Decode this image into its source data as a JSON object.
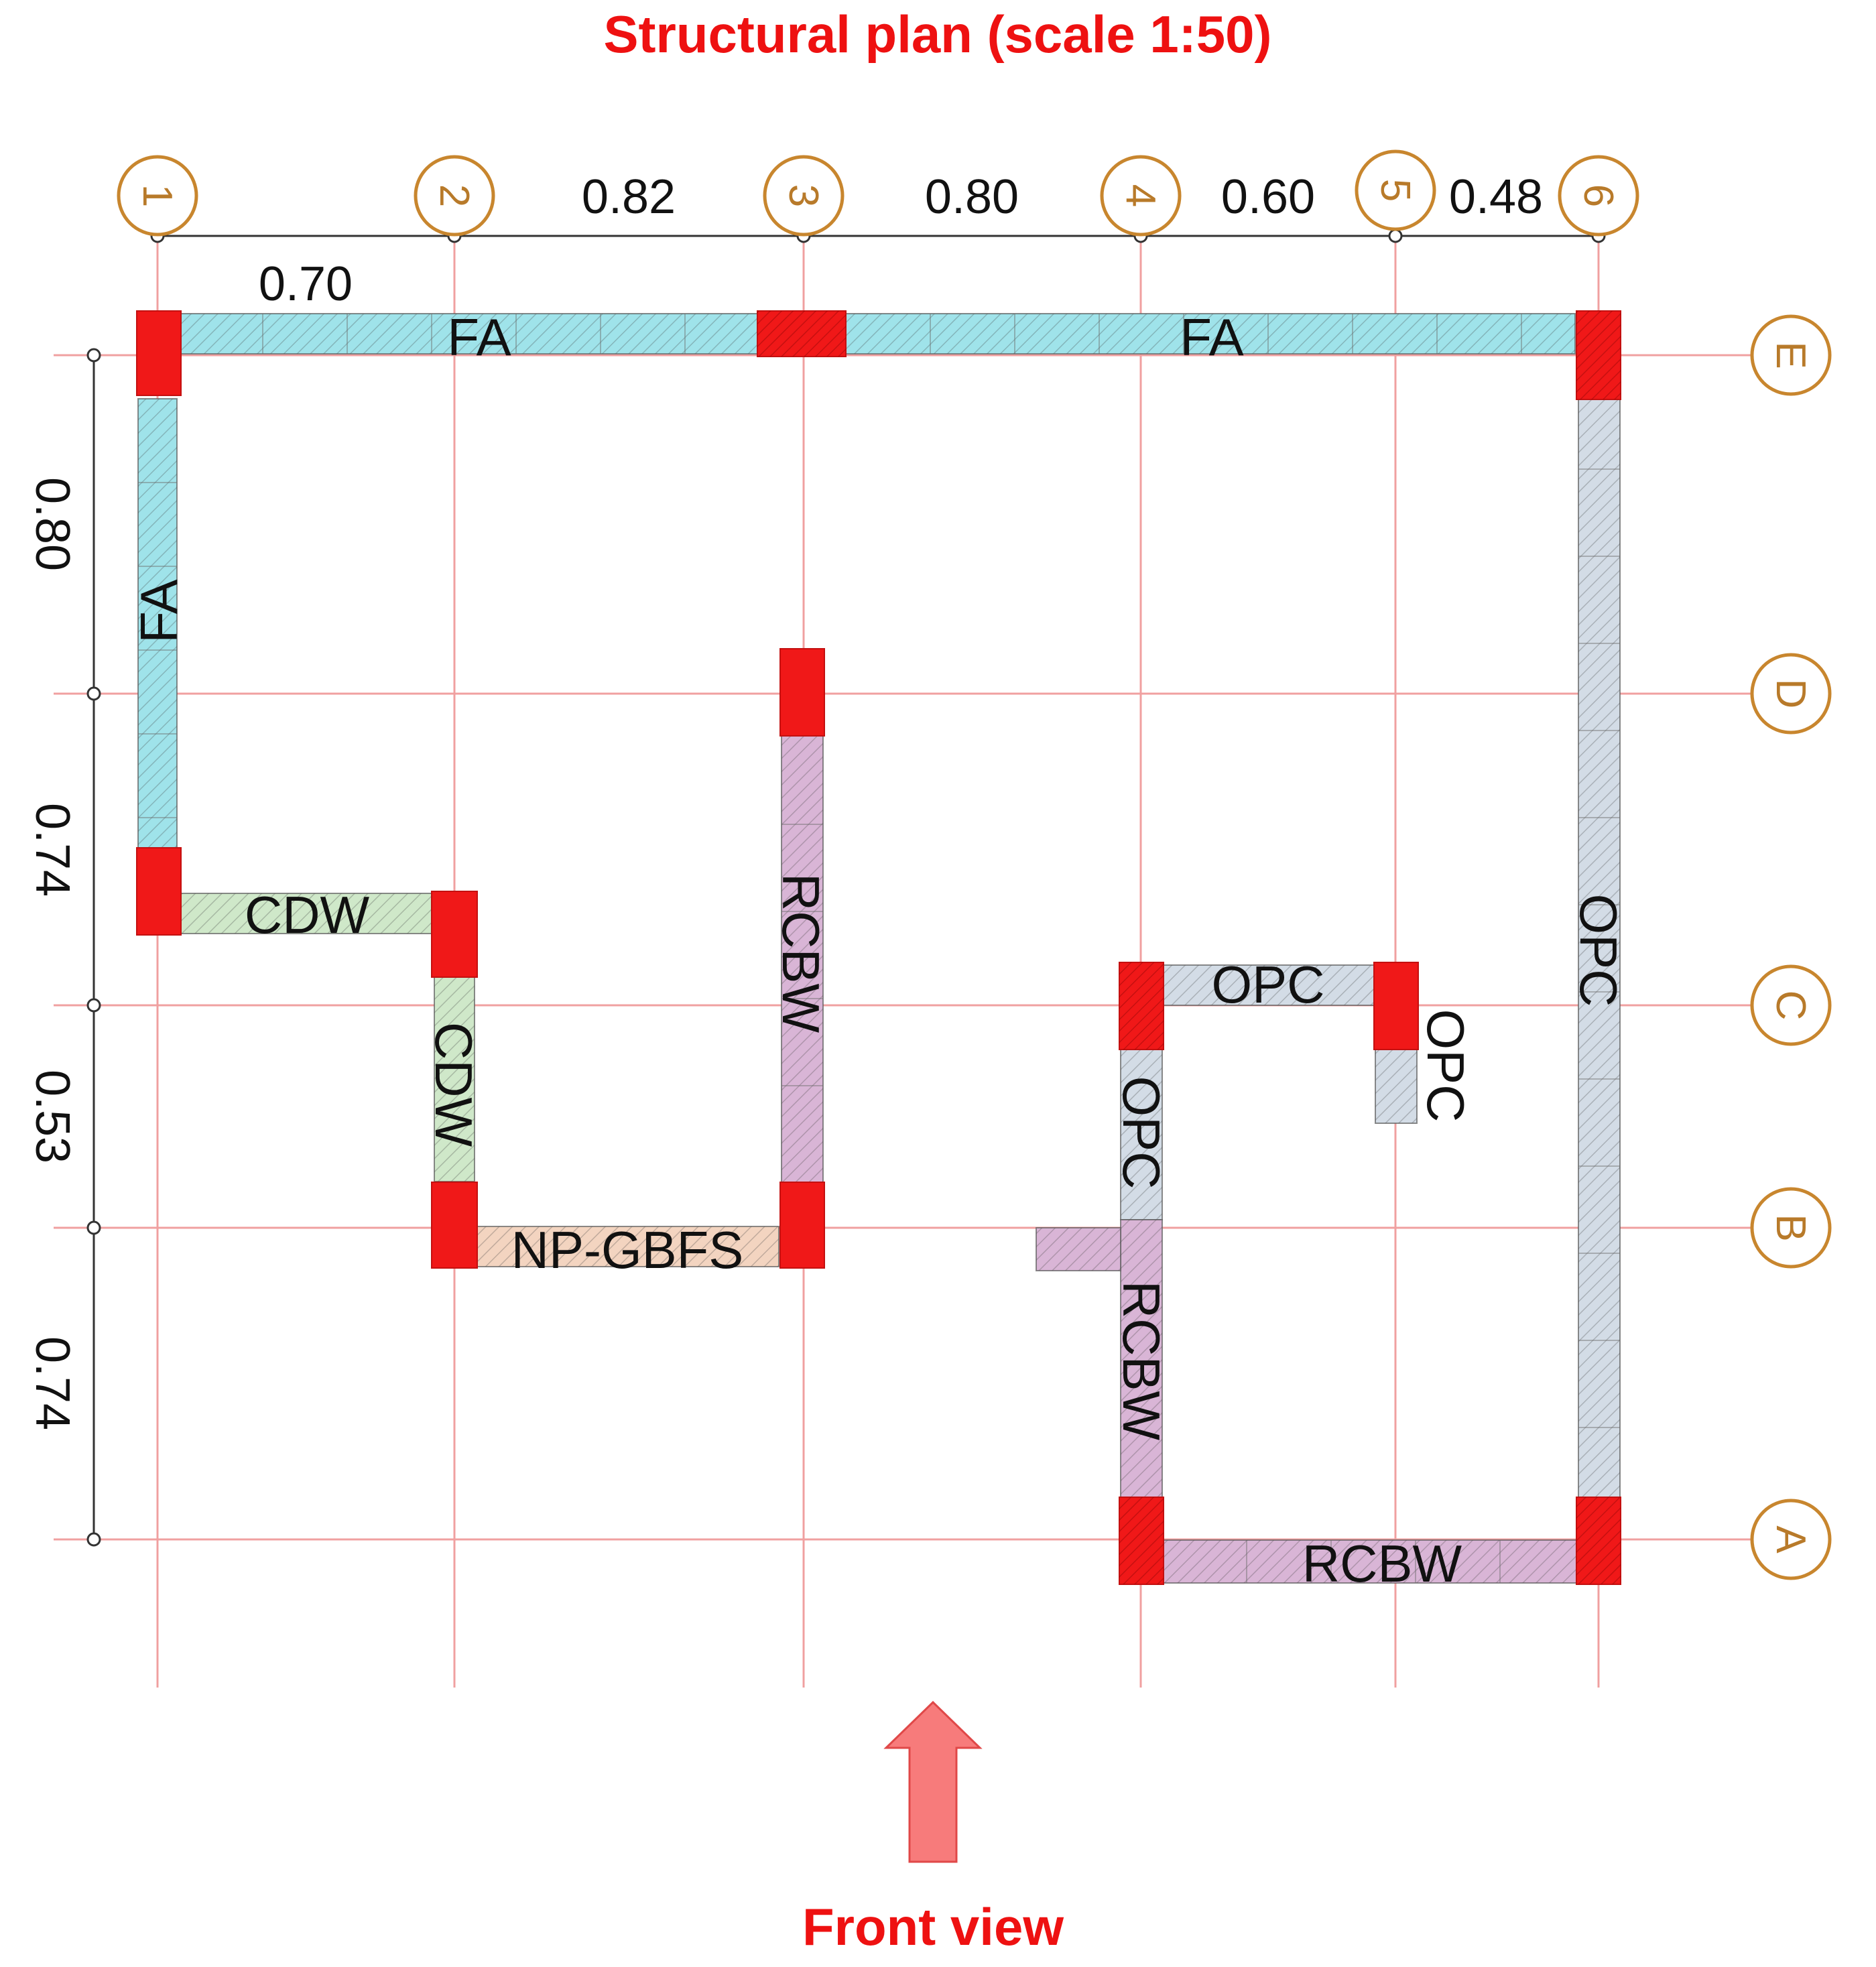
{
  "title": "Structural plan (scale 1:50)",
  "footer": "Front view",
  "colors": {
    "grid": "#f0a0a0",
    "bubble": "#c8862e",
    "column": "#f01818",
    "arrow": "#f77b7b",
    "title": "#ee1111",
    "FA": "#9fe3ea",
    "OPC": "#d3dce6",
    "RCBW": "#d9b5d6",
    "CDW": "#cfe8c9",
    "NP-GBFS": "#f3d4c0"
  },
  "grid": {
    "columns": [
      "1",
      "2",
      "3",
      "4",
      "5",
      "6"
    ],
    "rows": [
      "E",
      "D",
      "C",
      "B",
      "A"
    ]
  },
  "dimensions": {
    "top": [
      "0.82",
      "0.80",
      "0.60",
      "0.48"
    ],
    "top_lower": "0.70",
    "left": [
      "0.80",
      "0.74",
      "0.53",
      "0.74"
    ]
  },
  "walls": [
    {
      "label": "FA",
      "material": "FA"
    },
    {
      "label": "FA",
      "material": "FA"
    },
    {
      "label": "FA",
      "material": "FA"
    },
    {
      "label": "CDW",
      "material": "CDW"
    },
    {
      "label": "CDW",
      "material": "CDW"
    },
    {
      "label": "NP-GBFS",
      "material": "NP-GBFS"
    },
    {
      "label": "RCBW",
      "material": "RCBW"
    },
    {
      "label": "OPC",
      "material": "OPC"
    },
    {
      "label": "OPC",
      "material": "OPC"
    },
    {
      "label": "OPC",
      "material": "OPC"
    },
    {
      "label": "OPC",
      "material": "OPC"
    },
    {
      "label": "RCBW",
      "material": "RCBW"
    },
    {
      "label": "RCBW",
      "material": "RCBW"
    }
  ]
}
